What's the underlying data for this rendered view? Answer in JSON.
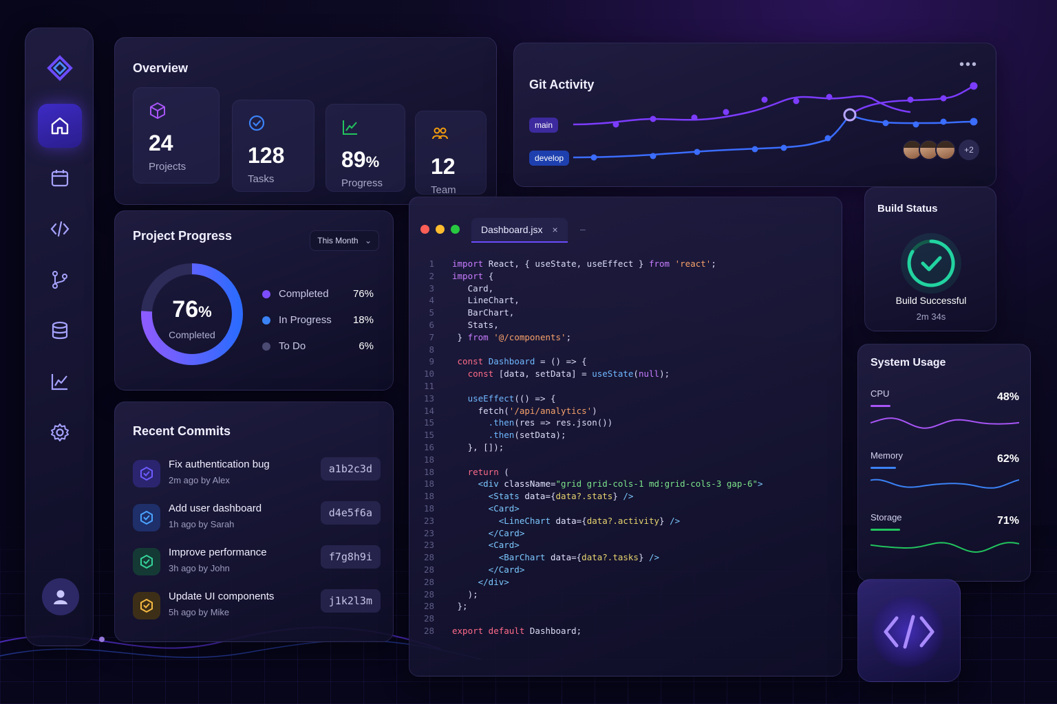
{
  "sidebar": {
    "items": [
      {
        "name": "home"
      },
      {
        "name": "calendar"
      },
      {
        "name": "code"
      },
      {
        "name": "git-branch"
      },
      {
        "name": "database"
      },
      {
        "name": "analytics"
      },
      {
        "name": "settings"
      }
    ],
    "logo_icon": "diamond-logo-icon",
    "user_icon": "user-avatar-icon"
  },
  "overview": {
    "title": "Overview",
    "stats": [
      {
        "value": "24",
        "unit": "",
        "label": "Projects",
        "icon": "cube-icon",
        "color": "#a855f7"
      },
      {
        "value": "128",
        "unit": "",
        "label": "Tasks",
        "icon": "check-circle-icon",
        "color": "#3b82f6"
      },
      {
        "value": "89",
        "unit": "%",
        "label": "Progress",
        "icon": "trend-chart-icon",
        "color": "#22c55e"
      },
      {
        "value": "12",
        "unit": "",
        "label": "Team",
        "icon": "team-icon",
        "color": "#f59e0b"
      }
    ]
  },
  "git": {
    "title": "Git Activity",
    "menu": "•••",
    "branches": [
      {
        "label": "main",
        "color": "#3c2a9e"
      },
      {
        "label": "develop",
        "color": "#1e40af"
      }
    ],
    "more_avatars": "+2"
  },
  "project_progress": {
    "title": "Project Progress",
    "filter": "This Month",
    "percent": 76,
    "percent_text": "76",
    "percent_unit": "%",
    "center_label": "Completed",
    "legend": [
      {
        "label": "Completed",
        "pct": "76%",
        "color": "#7c4dff"
      },
      {
        "label": "In Progress",
        "pct": "18%",
        "color": "#3b82f6"
      },
      {
        "label": "To Do",
        "pct": "6%",
        "color": "#4b4a73"
      }
    ]
  },
  "commits": {
    "title": "Recent Commits",
    "items": [
      {
        "title": "Fix authentication bug",
        "meta": "2m ago by Alex",
        "hash": "a1b2c3d",
        "color": "#6d5bff",
        "bg": "#2b2570"
      },
      {
        "title": "Add user dashboard",
        "meta": "1h ago by Sarah",
        "hash": "d4e5f6a",
        "color": "#4ba3ff",
        "bg": "#1e2f6a"
      },
      {
        "title": "Improve performance",
        "meta": "3h ago by John",
        "hash": "f7g8h9i",
        "color": "#34d399",
        "bg": "#153a35"
      },
      {
        "title": "Update UI components",
        "meta": "5h ago by Mike",
        "hash": "j1k2l3m",
        "color": "#f5b942",
        "bg": "#3d2f17"
      }
    ]
  },
  "editor": {
    "tab_label": "Dashboard.jsx",
    "tab_close": "×",
    "tab_extra": "–",
    "lines": [
      {
        "n": "1",
        "t": [
          [
            "kw",
            "import "
          ],
          [
            "pl",
            "React, { useState, useEffect } "
          ],
          [
            "kw",
            "from "
          ],
          [
            "str2",
            "'react'"
          ],
          [
            "pl",
            ";"
          ]
        ]
      },
      {
        "n": "2",
        "t": [
          [
            "kw",
            "import "
          ],
          [
            "pl",
            "{"
          ]
        ]
      },
      {
        "n": "3",
        "t": [
          [
            "pl",
            "   Card,"
          ]
        ]
      },
      {
        "n": "4",
        "t": [
          [
            "pl",
            "   LineChart,"
          ]
        ]
      },
      {
        "n": "5",
        "t": [
          [
            "pl",
            "   BarChart,"
          ]
        ]
      },
      {
        "n": "6",
        "t": [
          [
            "pl",
            "   Stats,"
          ]
        ]
      },
      {
        "n": "7",
        "t": [
          [
            "pl",
            " } "
          ],
          [
            "kw",
            "from "
          ],
          [
            "str2",
            "'@/components'"
          ],
          [
            "pl",
            ";"
          ]
        ]
      },
      {
        "n": "8",
        "t": [
          [
            "pl",
            ""
          ]
        ]
      },
      {
        "n": "9",
        "t": [
          [
            "red",
            " const "
          ],
          [
            "fn",
            "Dashboard "
          ],
          [
            "pl",
            "= () => {"
          ]
        ]
      },
      {
        "n": "10",
        "t": [
          [
            "red",
            "   const "
          ],
          [
            "pl",
            "[data, setData] = "
          ],
          [
            "fn",
            "useState"
          ],
          [
            "pl",
            "("
          ],
          [
            "kw",
            "null"
          ],
          [
            "pl",
            ");"
          ]
        ]
      },
      {
        "n": "11",
        "t": [
          [
            "pl",
            ""
          ]
        ]
      },
      {
        "n": "13",
        "t": [
          [
            "fn",
            "   useEffect"
          ],
          [
            "pl",
            "(() => {"
          ]
        ]
      },
      {
        "n": "14",
        "t": [
          [
            "pl",
            "     fetch("
          ],
          [
            "str2",
            "'/api/analytics'"
          ],
          [
            "pl",
            ")"
          ]
        ]
      },
      {
        "n": "15",
        "t": [
          [
            "fn",
            "       .then"
          ],
          [
            "pl",
            "(res => res.json())"
          ]
        ]
      },
      {
        "n": "15",
        "t": [
          [
            "fn",
            "       .then"
          ],
          [
            "pl",
            "(setData);"
          ]
        ]
      },
      {
        "n": "16",
        "t": [
          [
            "pl",
            "   }, []);"
          ]
        ]
      },
      {
        "n": "18",
        "t": [
          [
            "pl",
            ""
          ]
        ]
      },
      {
        "n": "18",
        "t": [
          [
            "red",
            "   return "
          ],
          [
            "pl",
            "("
          ]
        ]
      },
      {
        "n": "18",
        "t": [
          [
            "tag",
            "     <div "
          ],
          [
            "attr",
            "className"
          ],
          [
            "pl",
            "="
          ],
          [
            "grn",
            "\"grid grid-cols-1 md:grid-cols-3 gap-6\""
          ],
          [
            "tag",
            ">"
          ]
        ]
      },
      {
        "n": "18",
        "t": [
          [
            "tag",
            "       <Stats "
          ],
          [
            "attr",
            "data"
          ],
          [
            "pl",
            "={"
          ],
          [
            "str",
            "data?.stats"
          ],
          [
            "pl",
            "} "
          ],
          [
            "tag",
            "/>"
          ]
        ]
      },
      {
        "n": "18",
        "t": [
          [
            "tag",
            "       <Card>"
          ]
        ]
      },
      {
        "n": "23",
        "t": [
          [
            "tag",
            "         <LineChart "
          ],
          [
            "attr",
            "data"
          ],
          [
            "pl",
            "={"
          ],
          [
            "str",
            "data?.activity"
          ],
          [
            "pl",
            "} "
          ],
          [
            "tag",
            "/>"
          ]
        ]
      },
      {
        "n": "23",
        "t": [
          [
            "tag",
            "       </Card>"
          ]
        ]
      },
      {
        "n": "23",
        "t": [
          [
            "tag",
            "       <Card>"
          ]
        ]
      },
      {
        "n": "28",
        "t": [
          [
            "tag",
            "         <BarChart "
          ],
          [
            "attr",
            "data"
          ],
          [
            "pl",
            "={"
          ],
          [
            "str",
            "data?.tasks"
          ],
          [
            "pl",
            "} "
          ],
          [
            "tag",
            "/>"
          ]
        ]
      },
      {
        "n": "28",
        "t": [
          [
            "tag",
            "       </Card>"
          ]
        ]
      },
      {
        "n": "28",
        "t": [
          [
            "tag",
            "     </div>"
          ]
        ]
      },
      {
        "n": "28",
        "t": [
          [
            "pl",
            "   );"
          ]
        ]
      },
      {
        "n": "28",
        "t": [
          [
            "pl",
            " };"
          ]
        ]
      },
      {
        "n": "28",
        "t": [
          [
            "pl",
            ""
          ]
        ]
      },
      {
        "n": "28",
        "t": [
          [
            "red",
            "export default "
          ],
          [
            "pl",
            "Dashboard;"
          ]
        ]
      }
    ]
  },
  "build": {
    "title": "Build Status",
    "status": "Build Successful",
    "time": "2m 34s",
    "icon": "check-ring-icon",
    "color": "#22d3a0"
  },
  "system_usage": {
    "title": "System Usage",
    "metrics": [
      {
        "name": "CPU",
        "value": "48%",
        "fraction": 0.48,
        "color": "#a855f7"
      },
      {
        "name": "Memory",
        "value": "62%",
        "fraction": 0.62,
        "color": "#3b82f6"
      },
      {
        "name": "Storage",
        "value": "71%",
        "fraction": 0.71,
        "color": "#22c55e"
      }
    ]
  },
  "badge": {
    "icon": "code-brackets-icon"
  }
}
